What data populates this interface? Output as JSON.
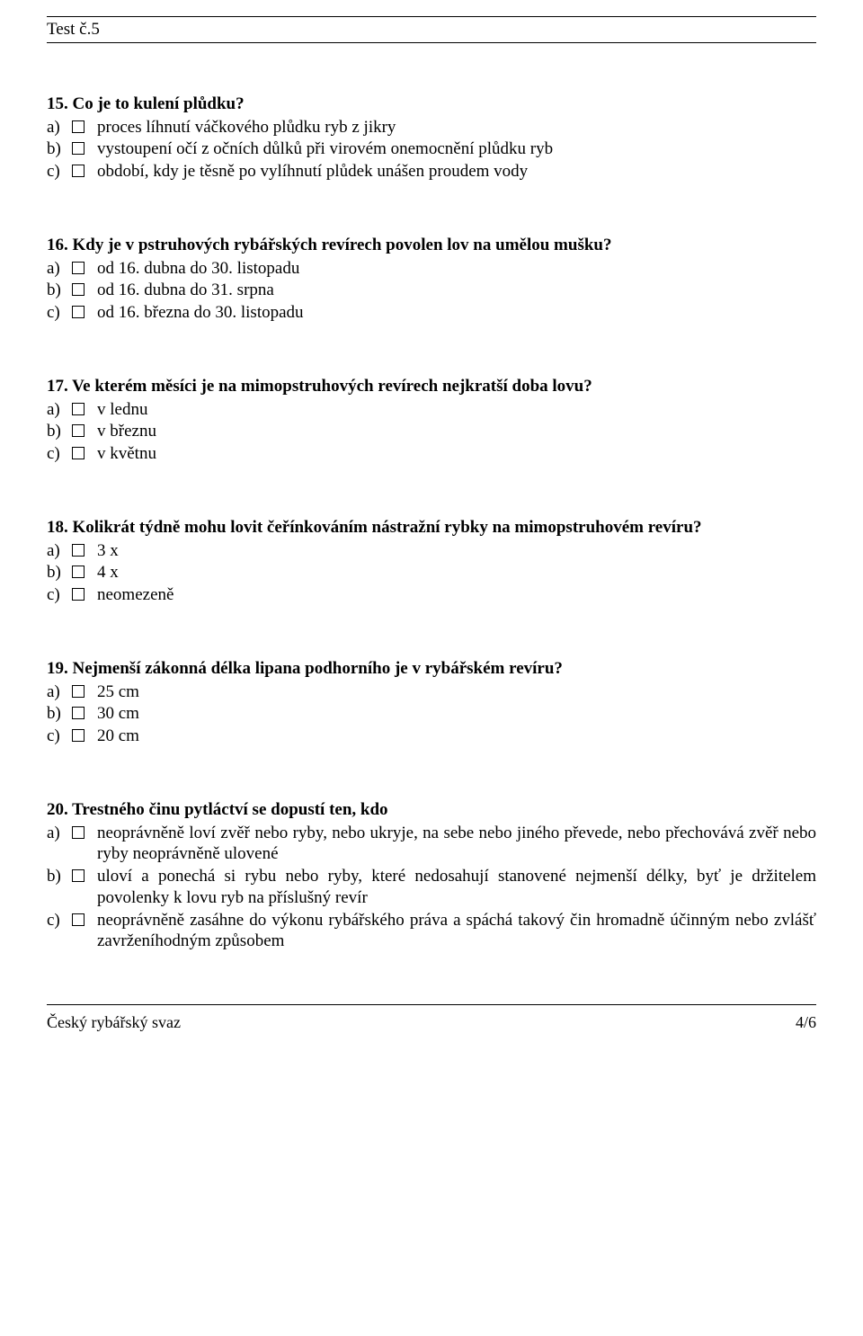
{
  "header": {
    "title": "Test č.5"
  },
  "footer": {
    "left": "Český rybářský svaz",
    "right": "4/6"
  },
  "questions": [
    {
      "number": "15.",
      "text": "Co je to kulení plůdku?",
      "options": [
        {
          "letter": "a)",
          "text": "proces líhnutí váčkového plůdku ryb z jikry"
        },
        {
          "letter": "b)",
          "text": "vystoupení očí z očních důlků při virovém onemocnění plůdku ryb"
        },
        {
          "letter": "c)",
          "text": "období, kdy je těsně po vylíhnutí plůdek unášen proudem vody"
        }
      ]
    },
    {
      "number": "16.",
      "text": "Kdy je v pstruhových rybářských revírech povolen lov na umělou mušku?",
      "options": [
        {
          "letter": "a)",
          "text": "od 16. dubna do 30. listopadu"
        },
        {
          "letter": "b)",
          "text": "od 16. dubna do 31. srpna"
        },
        {
          "letter": "c)",
          "text": "od 16. března do 30. listopadu"
        }
      ]
    },
    {
      "number": "17.",
      "text": "Ve kterém měsíci je na mimopstruhových revírech nejkratší doba lovu?",
      "options": [
        {
          "letter": "a)",
          "text": "v lednu"
        },
        {
          "letter": "b)",
          "text": "v březnu"
        },
        {
          "letter": "c)",
          "text": "v květnu"
        }
      ]
    },
    {
      "number": "18.",
      "text": "Kolikrát týdně mohu lovit čeřínkováním nástražní rybky na mimopstruhovém revíru?",
      "options": [
        {
          "letter": "a)",
          "text": "3 x"
        },
        {
          "letter": "b)",
          "text": "4 x"
        },
        {
          "letter": "c)",
          "text": "neomezeně"
        }
      ]
    },
    {
      "number": "19.",
      "text": "Nejmenší zákonná délka lipana podhorního je v rybářském revíru?",
      "options": [
        {
          "letter": "a)",
          "text": "25 cm"
        },
        {
          "letter": "b)",
          "text": "30 cm"
        },
        {
          "letter": "c)",
          "text": "20 cm"
        }
      ]
    },
    {
      "number": "20.",
      "text": "Trestného činu pytláctví se dopustí ten, kdo",
      "options": [
        {
          "letter": "a)",
          "text": "neoprávněně loví zvěř nebo ryby, nebo ukryje, na sebe nebo jiného převede, nebo přechovává zvěř nebo ryby neoprávněně ulovené"
        },
        {
          "letter": "b)",
          "text": "uloví a ponechá si rybu nebo ryby, které nedosahují stanovené nejmenší délky, byť je držitelem povolenky k lovu ryb na příslušný revír"
        },
        {
          "letter": "c)",
          "text": "neoprávněně zasáhne do výkonu rybářského práva a spáchá takový čin hromadně účinným nebo zvlášť zavrženíhodným způsobem"
        }
      ]
    }
  ]
}
